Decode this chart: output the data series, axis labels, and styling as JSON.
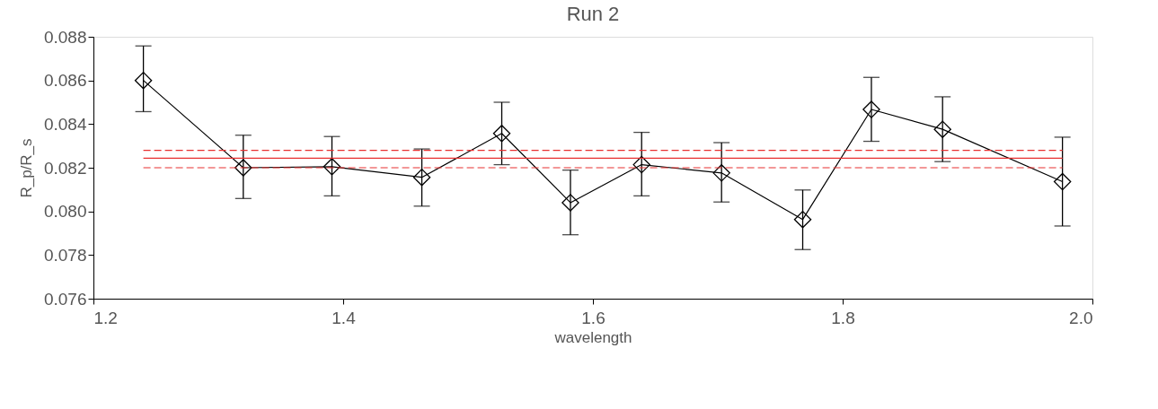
{
  "chart_data": {
    "type": "line",
    "title": "Run 2",
    "xlabel": "wavelength",
    "ylabel": "R_p/R_s",
    "xlim": [
      1.2,
      2.0
    ],
    "xticks": [
      1.2,
      1.4,
      1.6,
      1.8,
      {
        "value": 2.0,
        "label": "2.0"
      }
    ],
    "ylim": [
      0.076,
      0.088
    ],
    "yticks": [
      0.076,
      0.078,
      {
        "value": 0.08,
        "label": "0.080"
      },
      0.082,
      0.084,
      0.086,
      0.088
    ],
    "grid": false,
    "series": [
      {
        "color": "#000000",
        "marker": "diamond",
        "line_style": "solid",
        "x": [
          1.24,
          1.32,
          1.391,
          1.463,
          1.527,
          1.582,
          1.639,
          1.703,
          1.768,
          1.823,
          1.88,
          1.976
        ],
        "values": [
          0.086,
          0.082,
          0.08205,
          0.08156,
          0.08357,
          0.0804,
          0.08214,
          0.08176,
          0.07963,
          0.08467,
          0.08376,
          0.08136
        ],
        "errors": [
          [
            0.08457,
            0.08758
          ],
          [
            0.08059,
            0.08349
          ],
          [
            0.08071,
            0.08343
          ],
          [
            0.08024,
            0.08286
          ],
          [
            0.08214,
            0.085
          ],
          [
            0.07893,
            0.08189
          ],
          [
            0.08071,
            0.08362
          ],
          [
            0.08043,
            0.08315
          ],
          [
            0.07825,
            0.08098
          ],
          [
            0.08321,
            0.08614
          ],
          [
            0.08228,
            0.08525
          ],
          [
            0.07933,
            0.0834
          ]
        ]
      },
      {
        "color": "#e83030",
        "marker": "none",
        "line_style": "solid",
        "x": [
          1.24,
          1.976
        ],
        "values": [
          0.08244,
          0.08244
        ]
      },
      {
        "color": "#e83030",
        "marker": "none",
        "line_style": "dashed",
        "x": [
          1.24,
          1.976
        ],
        "values": [
          0.082,
          0.082
        ]
      },
      {
        "color": "#e83030",
        "marker": "none",
        "line_style": "dashed",
        "x": [
          1.24,
          1.976
        ],
        "values": [
          0.0828,
          0.0828
        ]
      }
    ]
  }
}
